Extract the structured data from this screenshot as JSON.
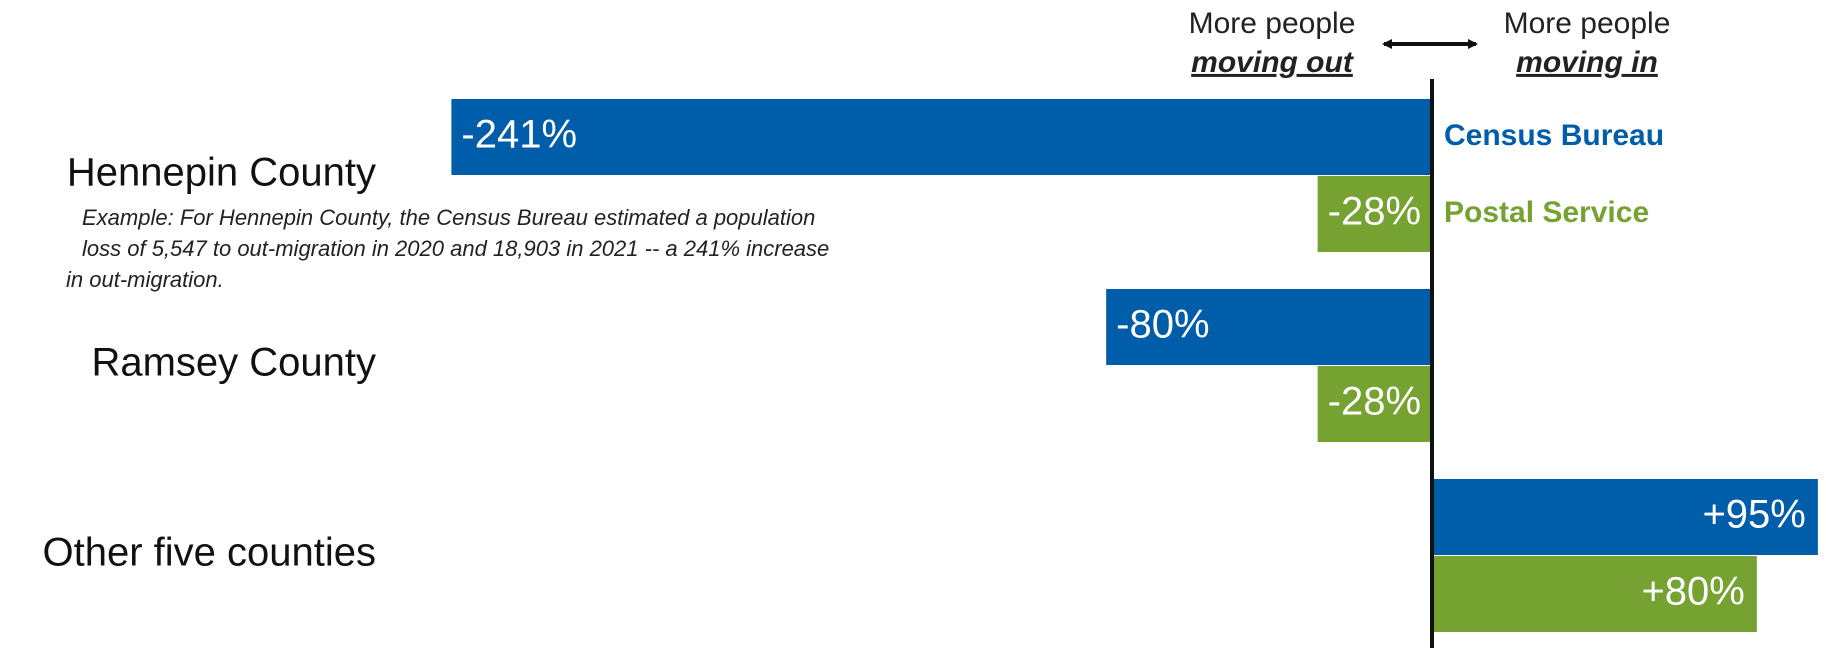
{
  "chart_data": {
    "type": "hbar",
    "categories": [
      "Hennepin County",
      "Ramsey County",
      "Other five counties"
    ],
    "series": [
      {
        "name": "Census Bureau",
        "color": "#005daa",
        "values": [
          -241,
          -80,
          95
        ],
        "value_labels": [
          "-241%",
          "-80%",
          "+95%"
        ]
      },
      {
        "name": "Postal Service",
        "color": "#76a232",
        "values": [
          -28,
          -28,
          80
        ],
        "value_labels": [
          "-28%",
          "-28%",
          "+80%"
        ]
      }
    ],
    "xlim": [
      -352,
      97
    ],
    "header": {
      "left": {
        "line1": "More people",
        "line2": "moving out"
      },
      "right": {
        "line1": "More people",
        "line2": "moving in"
      }
    },
    "annotation": [
      "Example: For Hennepin County, the Census Bureau estimated a population",
      "loss of 5,547 to out-migration in 2020 and 18,903 in 2021 -- a 241% increase",
      "in out-migration."
    ]
  }
}
